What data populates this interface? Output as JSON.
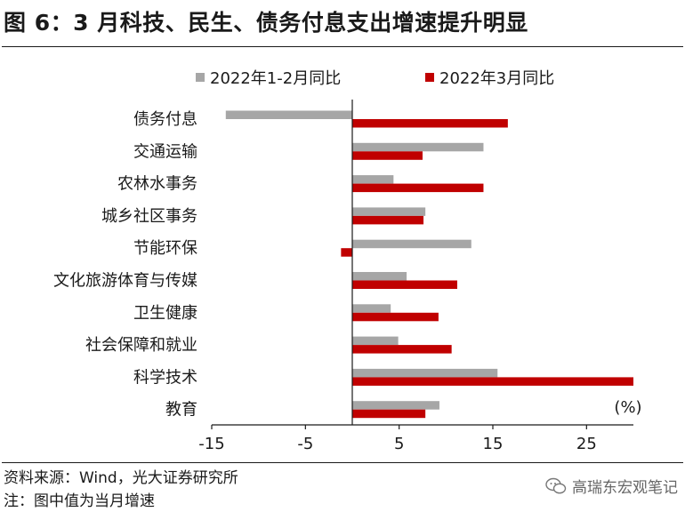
{
  "title": "图 6：3 月科技、民生、债务付息支出增速提升明显",
  "source": "资料来源：Wind，光大证券研究所",
  "note": "注：图中值为当月增速",
  "watermark": "高瑞东宏观笔记",
  "watermark_icon": "wechat-icon",
  "colors": {
    "series1": "#a6a6a6",
    "series2": "#c00000"
  },
  "chart_data": {
    "type": "bar",
    "orientation": "horizontal",
    "categories": [
      "债务付息",
      "交通运输",
      "农林水事务",
      "城乡社区事务",
      "节能环保",
      "文化旅游体育与传媒",
      "卫生健康",
      "社会保障和就业",
      "科学技术",
      "教育"
    ],
    "series": [
      {
        "name": "2022年1-2月同比",
        "values": [
          -13.5,
          14.0,
          4.4,
          7.8,
          12.7,
          5.8,
          4.1,
          4.9,
          15.5,
          9.3
        ]
      },
      {
        "name": "2022年3月同比",
        "values": [
          16.6,
          7.5,
          14.0,
          7.6,
          -1.2,
          11.2,
          9.2,
          10.6,
          30.0,
          7.8
        ]
      }
    ],
    "xlim": [
      -15,
      30
    ],
    "xticks": [
      "-15",
      "-5",
      "5",
      "15",
      "25"
    ],
    "xtick_values": [
      -15,
      -5,
      5,
      15,
      25
    ],
    "unit_label": "(%)",
    "legend_position": "top-center",
    "grid": false
  }
}
